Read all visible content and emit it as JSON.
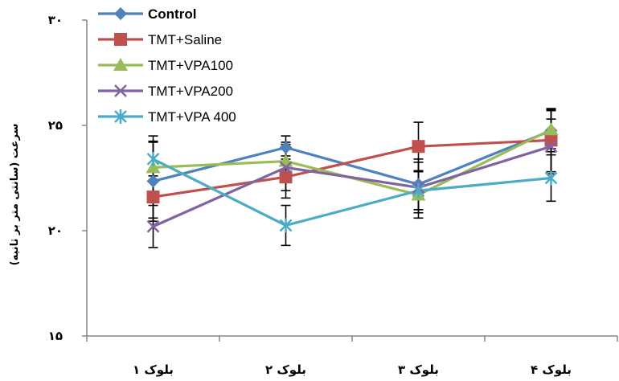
{
  "chart_data": {
    "type": "line",
    "ylabel": "سرعت (سانتی متر بر ثانیه)",
    "ylim": [
      15,
      30
    ],
    "yticks": [
      {
        "value": 30,
        "label": "۳۰"
      },
      {
        "value": 25,
        "label": "۲۵"
      },
      {
        "value": 20,
        "label": "۲۰"
      },
      {
        "value": 15,
        "label": "۱۵"
      }
    ],
    "categories": [
      "بلوک ۱",
      "بلوک ۲",
      "بلوک ۳",
      "بلوک ۴"
    ],
    "grid": false,
    "legend_position": "top-left",
    "series": [
      {
        "name": "Control",
        "color": "#4f81bd",
        "marker": "diamond",
        "bold": true,
        "values": [
          22.35,
          23.95,
          22.2,
          24.75
        ],
        "errors": [
          1.9,
          0.55,
          1.2,
          1.0
        ]
      },
      {
        "name": "TMT+Saline",
        "color": "#c0504d",
        "marker": "square",
        "bold": false,
        "values": [
          21.6,
          22.55,
          24.0,
          24.3
        ],
        "errors": [
          1.0,
          1.0,
          1.15,
          1.5
        ]
      },
      {
        "name": "TMT+VPA100",
        "color": "#9bbb59",
        "marker": "triangle",
        "bold": false,
        "values": [
          23.0,
          23.3,
          21.7,
          24.8
        ],
        "errors": [
          1.2,
          0.9,
          1.1,
          0.9
        ]
      },
      {
        "name": "TMT+VPA200",
        "color": "#8064a2",
        "marker": "x",
        "bold": false,
        "values": [
          20.2,
          23.0,
          22.05,
          24.0
        ],
        "errors": [
          1.0,
          1.1,
          1.2,
          1.3
        ]
      },
      {
        "name": "TMT+VPA 400",
        "color": "#4bacc6",
        "marker": "star",
        "bold": false,
        "values": [
          23.4,
          20.25,
          21.9,
          22.5
        ],
        "errors": [
          1.1,
          0.95,
          0.9,
          1.1
        ]
      }
    ]
  }
}
